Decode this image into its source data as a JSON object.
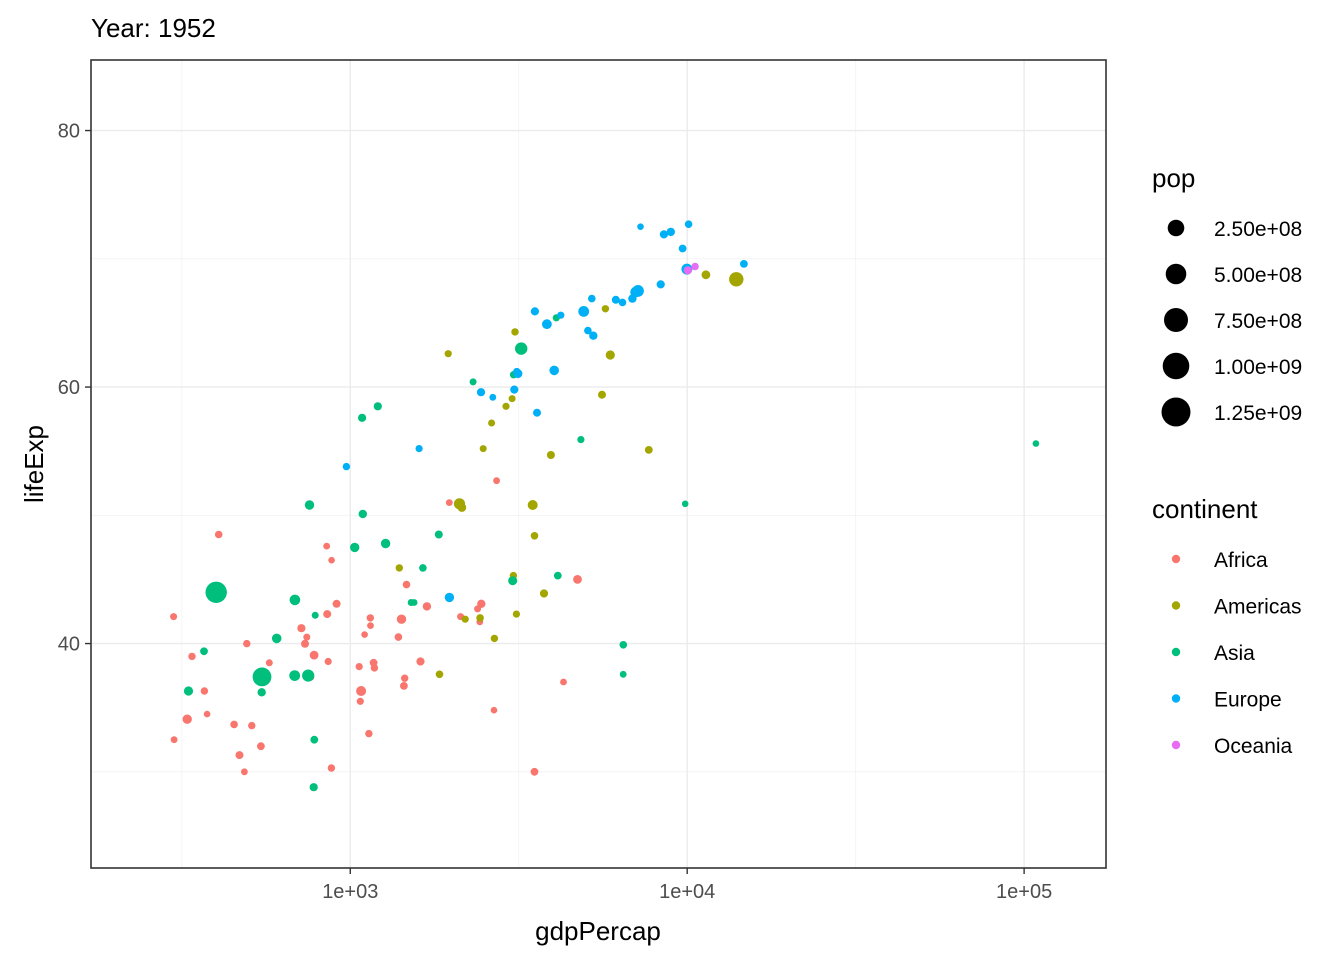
{
  "title": "Year: 1952",
  "chart_data": {
    "type": "scatter",
    "title": "Year: 1952",
    "xlabel": "gdpPercap",
    "ylabel": "lifeExp",
    "x_scale": "log10",
    "xlim": [
      170,
      175000
    ],
    "ylim": [
      22.5,
      85.5
    ],
    "x_ticks": [
      1000,
      10000,
      100000
    ],
    "x_tick_labels": [
      "1e+03",
      "1e+04",
      "1e+05"
    ],
    "y_ticks": [
      40,
      60,
      80
    ],
    "y_tick_labels": [
      "40",
      "60",
      "80"
    ],
    "grid": true,
    "legend_placement": "right",
    "size_legend": {
      "title": "pop",
      "entries": [
        {
          "label": "2.50e+08",
          "value": 250000000
        },
        {
          "label": "5.00e+08",
          "value": 500000000
        },
        {
          "label": "7.50e+08",
          "value": 750000000
        },
        {
          "label": "1.00e+09",
          "value": 1000000000
        },
        {
          "label": "1.25e+09",
          "value": 1250000000
        }
      ]
    },
    "color_legend": {
      "title": "continent",
      "entries": [
        {
          "label": "Africa",
          "color": "#F8766D"
        },
        {
          "label": "Americas",
          "color": "#A3A500"
        },
        {
          "label": "Asia",
          "color": "#00BF7D"
        },
        {
          "label": "Europe",
          "color": "#00B0F6"
        },
        {
          "label": "Oceania",
          "color": "#E76BF3"
        }
      ]
    },
    "series": [
      {
        "name": "Africa",
        "color": "#F8766D",
        "points": [
          [
            2449,
            43.1,
            9.3
          ],
          [
            3521,
            30.0,
            4.2
          ],
          [
            1063,
            38.2,
            1.7
          ],
          [
            851,
            47.6,
            0.4
          ],
          [
            543,
            32.0,
            4.5
          ],
          [
            339,
            39.0,
            2.4
          ],
          [
            1173,
            38.5,
            5.0
          ],
          [
            1071,
            35.5,
            1.3
          ],
          [
            1179,
            38.1,
            2.7
          ],
          [
            1103,
            40.7,
            0.2
          ],
          [
            781,
            39.1,
            14.1
          ],
          [
            2126,
            42.1,
            0.9
          ],
          [
            1389,
            40.5,
            3.0
          ],
          [
            2670,
            34.8,
            0.1
          ],
          [
            1419,
            41.9,
            22.2
          ],
          [
            376,
            34.5,
            0.2
          ],
          [
            328,
            34.1,
            20.9
          ],
          [
            4293,
            37.0,
            0.4
          ],
          [
            485,
            30.0,
            0.3
          ],
          [
            911,
            43.1,
            5.6
          ],
          [
            510,
            33.6,
            2.7
          ],
          [
            300,
            32.5,
            0.6
          ],
          [
            854,
            42.3,
            6.5
          ],
          [
            299,
            42.1,
            0.7
          ],
          [
            575,
            38.5,
            0.9
          ],
          [
            2388,
            42.7,
            1.0
          ],
          [
            1443,
            36.7,
            4.8
          ],
          [
            369,
            36.3,
            2.9
          ],
          [
            452,
            33.7,
            3.8
          ],
          [
            743,
            40.5,
            1.0
          ],
          [
            1968,
            50.99,
            0.5
          ],
          [
            1688,
            42.9,
            9.9
          ],
          [
            469,
            31.3,
            6.4
          ],
          [
            2424,
            41.7,
            0.5
          ],
          [
            762,
            37.4,
            3.4
          ],
          [
            1077,
            36.3,
            33.1
          ],
          [
            2719,
            52.7,
            0.3
          ],
          [
            493,
            40.0,
            2.5
          ],
          [
            880,
            46.5,
            0.1
          ],
          [
            1451,
            37.3,
            2.6
          ],
          [
            879,
            30.3,
            2.1
          ],
          [
            1136,
            32.98,
            2.5
          ],
          [
            4725,
            45.0,
            14.3
          ],
          [
            1616,
            38.6,
            8.5
          ],
          [
            1148,
            41.4,
            0.3
          ],
          [
            716,
            41.2,
            8.3
          ],
          [
            860,
            38.6,
            1.2
          ],
          [
            1468,
            44.6,
            3.6
          ],
          [
            734,
            39.98,
            5.8
          ],
          [
            1147,
            42.0,
            2.7
          ],
          [
            407,
            48.5,
            3.1
          ]
        ]
      },
      {
        "name": "Americas",
        "color": "#A3A500",
        "points": [
          [
            5911,
            62.5,
            17.9
          ],
          [
            2677,
            40.4,
            2.9
          ],
          [
            2109,
            50.9,
            56.6
          ],
          [
            11367,
            68.75,
            14.8
          ],
          [
            3940,
            54.7,
            6.4
          ],
          [
            2144,
            50.6,
            12.4
          ],
          [
            2627,
            57.2,
            0.9
          ],
          [
            5587,
            59.4,
            6.0
          ],
          [
            1398,
            45.9,
            2.5
          ],
          [
            3522,
            48.4,
            3.5
          ],
          [
            3048,
            45.3,
            2.0
          ],
          [
            2428,
            42.0,
            3.1
          ],
          [
            1840,
            37.6,
            3.2
          ],
          [
            2194,
            41.9,
            1.5
          ],
          [
            2898,
            58.5,
            1.4
          ],
          [
            3478,
            50.8,
            30.1
          ],
          [
            3112,
            42.3,
            1.2
          ],
          [
            2480,
            55.2,
            0.9
          ],
          [
            1953,
            62.6,
            1.6
          ],
          [
            3759,
            43.9,
            8.0
          ],
          [
            3082,
            64.3,
            2.2
          ],
          [
            3023,
            59.1,
            0.7
          ],
          [
            13990,
            68.4,
            157.6
          ],
          [
            5717,
            66.1,
            2.3
          ],
          [
            7690,
            55.1,
            5.4
          ]
        ]
      },
      {
        "name": "Asia",
        "color": "#00BF7D",
        "points": [
          [
            779,
            28.8,
            8.4
          ],
          [
            9867,
            50.9,
            0.1
          ],
          [
            684,
            37.5,
            46.9
          ],
          [
            368,
            39.4,
            4.7
          ],
          [
            400,
            44.0,
            556.3
          ],
          [
            3054,
            60.96,
            2.1
          ],
          [
            547,
            37.4,
            372.0
          ],
          [
            750,
            37.5,
            82.1
          ],
          [
            3035,
            44.9,
            17.3
          ],
          [
            4130,
            45.3,
            5.4
          ],
          [
            4087,
            65.4,
            1.6
          ],
          [
            3217,
            63.0,
            86.5
          ],
          [
            1547,
            43.2,
            0.6
          ],
          [
            1089,
            50.1,
            8.9
          ],
          [
            1031,
            47.5,
            20.9
          ],
          [
            108382,
            55.6,
            0.2
          ],
          [
            4835,
            55.9,
            1.4
          ],
          [
            1831,
            48.5,
            6.7
          ],
          [
            787,
            42.2,
            0.8
          ],
          [
            331,
            36.3,
            20.1
          ],
          [
            546,
            36.2,
            9.2
          ],
          [
            6459,
            37.6,
            0.5
          ],
          [
            685,
            43.4,
            41.3
          ],
          [
            1273,
            47.8,
            22.4
          ],
          [
            6460,
            39.9,
            4.0
          ],
          [
            2315,
            60.4,
            1.1
          ],
          [
            1084,
            57.6,
            8.6
          ],
          [
            1207,
            58.5,
            8.6
          ],
          [
            1643,
            45.9,
            3.7
          ],
          [
            757,
            50.8,
            21.3
          ],
          [
            605,
            40.4,
            26.2
          ],
          [
            1516,
            43.2,
            1.0
          ],
          [
            782,
            32.5,
            4.96
          ]
        ]
      },
      {
        "name": "Europe",
        "color": "#00B0F6",
        "points": [
          [
            1601,
            55.2,
            1.3
          ],
          [
            6137,
            66.8,
            6.9
          ],
          [
            8343,
            68.0,
            8.7
          ],
          [
            974,
            53.8,
            2.8
          ],
          [
            2444,
            59.6,
            7.3
          ],
          [
            3120,
            61.2,
            3.9
          ],
          [
            6876,
            66.9,
            9.1
          ],
          [
            9692,
            70.8,
            4.3
          ],
          [
            6425,
            66.6,
            4.1
          ],
          [
            7030,
            67.4,
            42.5
          ],
          [
            7144,
            67.5,
            69.1
          ],
          [
            3531,
            65.9,
            7.7
          ],
          [
            5264,
            64.0,
            9.5
          ],
          [
            7268,
            72.5,
            0.1
          ],
          [
            5211,
            66.9,
            3.0
          ],
          [
            4931,
            65.9,
            47.7
          ],
          [
            2648,
            59.2,
            0.4
          ],
          [
            8942,
            72.1,
            10.4
          ],
          [
            10095,
            72.7,
            3.3
          ],
          [
            4029,
            61.3,
            25.7
          ],
          [
            3068,
            59.8,
            8.5
          ],
          [
            3145,
            61.05,
            16.6
          ],
          [
            3582,
            58.0,
            6.9
          ],
          [
            5074,
            64.4,
            3.6
          ],
          [
            4215,
            65.6,
            1.5
          ],
          [
            3834,
            64.9,
            28.6
          ],
          [
            8528,
            71.9,
            7.1
          ],
          [
            14734,
            69.6,
            4.8
          ],
          [
            1969,
            43.6,
            22.2
          ],
          [
            9980,
            69.2,
            50.4
          ]
        ]
      },
      {
        "name": "Oceania",
        "color": "#E76BF3",
        "points": [
          [
            10040,
            69.1,
            8.7
          ],
          [
            10557,
            69.4,
            1.99
          ]
        ]
      }
    ]
  }
}
